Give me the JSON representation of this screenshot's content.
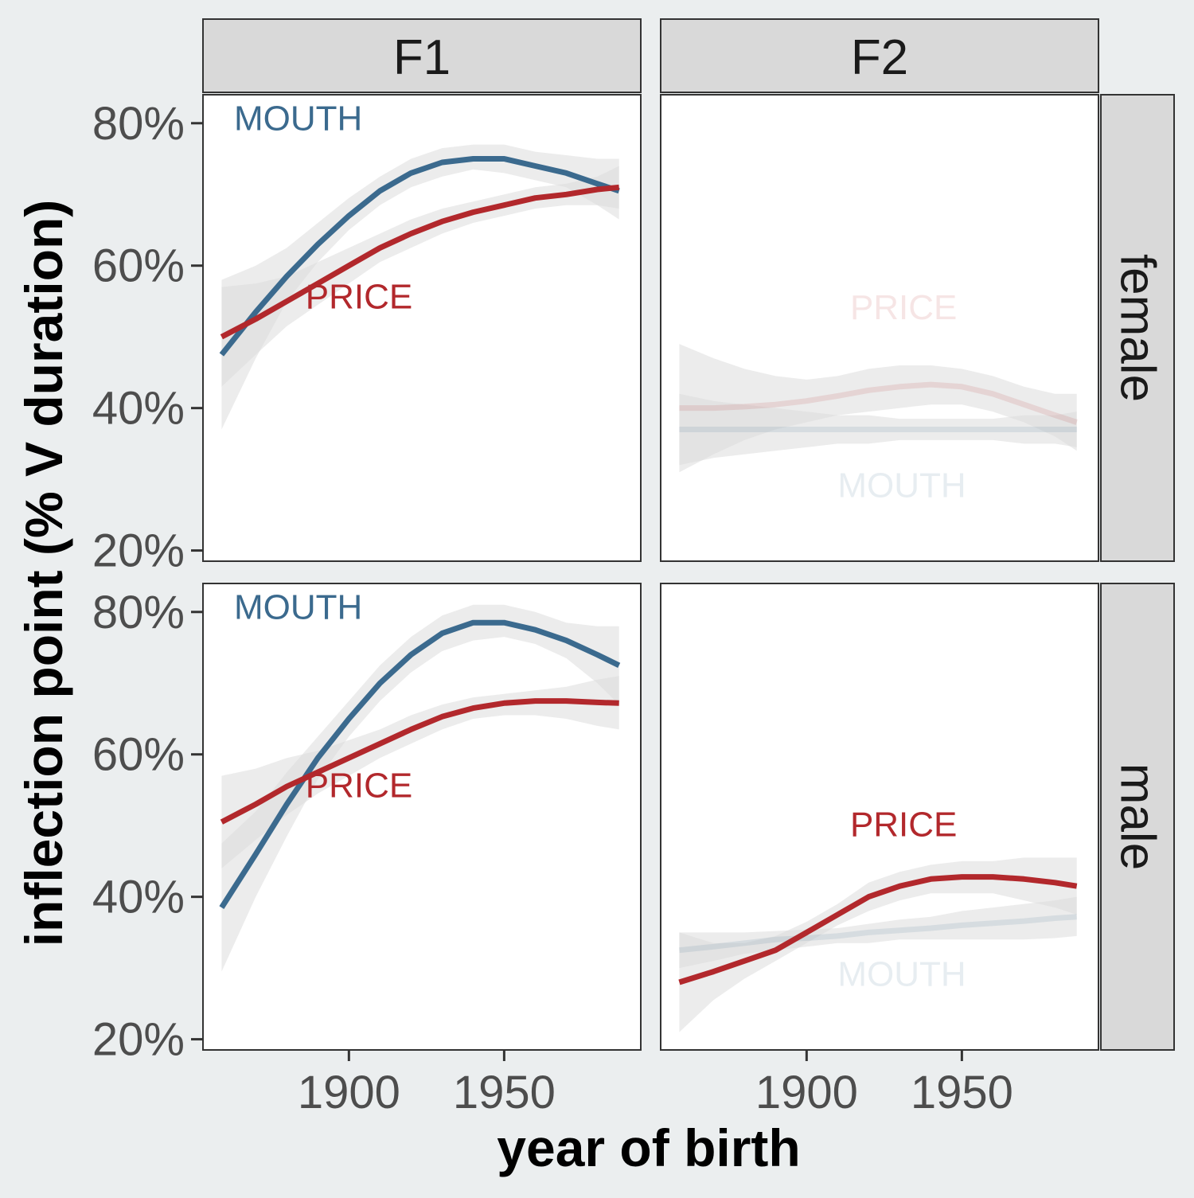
{
  "chart_data": {
    "type": "line",
    "xlabel": "year of birth",
    "ylabel": "inflection point (% V duration)",
    "xlim": [
      1853,
      1994
    ],
    "ylim": [
      18.5,
      84
    ],
    "x_ticks": [
      1900,
      1950
    ],
    "x_tick_labels": [
      "1900",
      "1950"
    ],
    "y_ticks": [
      20,
      40,
      60,
      80
    ],
    "y_tick_labels": [
      "20%",
      "40%",
      "60%",
      "80%"
    ],
    "grid": false,
    "legend": "none (direct labels)",
    "columns": [
      "F1",
      "F2"
    ],
    "rows": [
      "female",
      "male"
    ],
    "series_colors": {
      "MOUTH": "#3B6A8E",
      "PRICE": "#B2282C"
    },
    "band_color": "#DDDDDD",
    "panels": [
      {
        "column": "F1",
        "row": "female",
        "series": [
          {
            "name": "MOUTH",
            "opacity": 1,
            "label_pos": {
              "x": 1863,
              "y": 79
            },
            "x": [
              1859,
              1870,
              1880,
              1890,
              1900,
              1910,
              1920,
              1930,
              1940,
              1950,
              1960,
              1970,
              1980,
              1987
            ],
            "y": [
              47.5,
              53.5,
              58.5,
              63,
              67,
              70.5,
              73,
              74.5,
              75,
              75,
              74,
              73,
              71.5,
              70.5
            ],
            "lower": [
              37,
              47,
              55,
              60.5,
              65,
              68.5,
              71,
              72.5,
              73.5,
              73,
              72,
              71,
              68.5,
              66.5
            ],
            "upper": [
              58,
              60,
              62.5,
              66,
              69.5,
              72.5,
              75,
              76.5,
              77,
              77,
              76,
              75.5,
              75,
              75
            ]
          },
          {
            "name": "PRICE",
            "opacity": 1,
            "label_pos": {
              "x": 1886,
              "y": 54
            },
            "x": [
              1859,
              1870,
              1880,
              1890,
              1900,
              1910,
              1920,
              1930,
              1940,
              1950,
              1960,
              1970,
              1980,
              1987
            ],
            "y": [
              50,
              52.5,
              55,
              57.5,
              60,
              62.5,
              64.5,
              66.2,
              67.5,
              68.5,
              69.5,
              70,
              70.7,
              71
            ],
            "lower": [
              43,
              47.5,
              51.5,
              54.5,
              57.5,
              60.5,
              62.5,
              64.5,
              66,
              67,
              68,
              68.5,
              68.5,
              68
            ],
            "upper": [
              57,
              57.5,
              58.5,
              60.5,
              62.5,
              64.5,
              66.5,
              68,
              69,
              70,
              71,
              71.5,
              72.5,
              74
            ]
          }
        ]
      },
      {
        "column": "F2",
        "row": "female",
        "series": [
          {
            "name": "MOUTH",
            "opacity": 0.12,
            "label_pos": {
              "x": 1910,
              "y": 27.5
            },
            "x": [
              1859,
              1870,
              1880,
              1890,
              1900,
              1910,
              1920,
              1930,
              1940,
              1950,
              1960,
              1970,
              1980,
              1987
            ],
            "y": [
              37,
              37,
              37,
              37,
              37,
              37,
              37,
              37,
              37,
              37,
              37,
              37,
              37,
              37
            ],
            "lower": [
              32,
              33,
              33.5,
              34,
              34.5,
              35,
              35,
              35.5,
              35.5,
              35.5,
              35.5,
              35,
              35,
              34.5
            ],
            "upper": [
              42,
              41,
              40.5,
              40,
              39.5,
              39,
              39,
              38.5,
              38.5,
              38.5,
              38.5,
              39,
              39,
              39.5
            ]
          },
          {
            "name": "PRICE",
            "opacity": 0.12,
            "label_pos": {
              "x": 1914,
              "y": 52.5
            },
            "x": [
              1859,
              1870,
              1880,
              1890,
              1900,
              1910,
              1920,
              1930,
              1940,
              1950,
              1960,
              1970,
              1980,
              1987
            ],
            "y": [
              40,
              40,
              40.2,
              40.5,
              41,
              41.7,
              42.5,
              43,
              43.3,
              43,
              42,
              40.5,
              39,
              38
            ],
            "lower": [
              31,
              33.5,
              35.5,
              37,
              38,
              39,
              39.5,
              40,
              40.5,
              40.5,
              39.5,
              38,
              36,
              34
            ],
            "upper": [
              49,
              47,
              45.5,
              44.5,
              44,
              44.5,
              45.5,
              46,
              46,
              45.5,
              44.5,
              43,
              42,
              42
            ]
          }
        ]
      },
      {
        "column": "F1",
        "row": "male",
        "series": [
          {
            "name": "MOUTH",
            "opacity": 1,
            "label_pos": {
              "x": 1863,
              "y": 79
            },
            "x": [
              1859,
              1870,
              1880,
              1890,
              1900,
              1910,
              1920,
              1930,
              1940,
              1950,
              1960,
              1970,
              1980,
              1987
            ],
            "y": [
              38.5,
              46,
              53,
              59.5,
              65,
              70,
              74,
              77,
              78.5,
              78.5,
              77.5,
              76,
              74,
              72.5
            ],
            "lower": [
              29.5,
              40,
              48.5,
              56.5,
              62.5,
              67.5,
              71.5,
              74.5,
              76,
              76.5,
              75.5,
              73.5,
              70,
              67
            ],
            "upper": [
              47.5,
              52,
              57.5,
              62.5,
              67.5,
              72.5,
              76.5,
              79.5,
              81,
              81,
              80,
              78.5,
              78,
              78
            ]
          },
          {
            "name": "PRICE",
            "opacity": 1,
            "label_pos": {
              "x": 1886,
              "y": 54
            },
            "x": [
              1859,
              1870,
              1880,
              1890,
              1900,
              1910,
              1920,
              1930,
              1940,
              1950,
              1960,
              1970,
              1980,
              1987
            ],
            "y": [
              50.5,
              53,
              55.5,
              57.5,
              59.5,
              61.5,
              63.5,
              65.3,
              66.5,
              67.2,
              67.5,
              67.5,
              67.3,
              67.2
            ],
            "lower": [
              44,
              48,
              51.5,
              54.5,
              57,
              59.5,
              61.5,
              63.5,
              65,
              65.5,
              65.5,
              65,
              64,
              63.5
            ],
            "upper": [
              57,
              58,
              59.5,
              60.5,
              62,
              63.5,
              65.5,
              67,
              68,
              68.5,
              69,
              69.5,
              70.5,
              71
            ]
          }
        ]
      },
      {
        "column": "F2",
        "row": "male",
        "series": [
          {
            "name": "MOUTH",
            "opacity": 0.12,
            "label_pos": {
              "x": 1910,
              "y": 27.5
            },
            "x": [
              1859,
              1870,
              1880,
              1890,
              1900,
              1910,
              1920,
              1930,
              1940,
              1950,
              1960,
              1970,
              1980,
              1987
            ],
            "y": [
              32.5,
              33,
              33.5,
              34,
              34.2,
              34.5,
              35,
              35.3,
              35.6,
              36,
              36.3,
              36.6,
              37,
              37.2
            ],
            "lower": [
              30,
              31,
              32,
              32.5,
              33,
              33.5,
              33.5,
              34,
              34,
              34,
              34,
              34,
              34.2,
              34.5
            ],
            "upper": [
              35,
              35,
              35,
              35.2,
              35.4,
              35.6,
              36.2,
              36.8,
              37.2,
              38,
              38.5,
              39,
              39.5,
              40
            ]
          },
          {
            "name": "PRICE",
            "opacity": 1,
            "label_pos": {
              "x": 1914,
              "y": 48.5
            },
            "x": [
              1859,
              1870,
              1880,
              1890,
              1900,
              1910,
              1920,
              1930,
              1940,
              1950,
              1960,
              1970,
              1980,
              1987
            ],
            "y": [
              28,
              29.5,
              31,
              32.5,
              35,
              37.5,
              40,
              41.5,
              42.5,
              42.8,
              42.8,
              42.5,
              42,
              41.5
            ],
            "lower": [
              21,
              25.5,
              28.5,
              31,
              33.5,
              36,
              38,
              39.5,
              40.5,
              40.5,
              40.5,
              39.5,
              38.5,
              37.5
            ],
            "upper": [
              35,
              33.5,
              33.5,
              34.5,
              36.5,
              39,
              42,
              43.5,
              44.5,
              45,
              45,
              45.5,
              45.5,
              45.5
            ]
          }
        ]
      }
    ]
  }
}
